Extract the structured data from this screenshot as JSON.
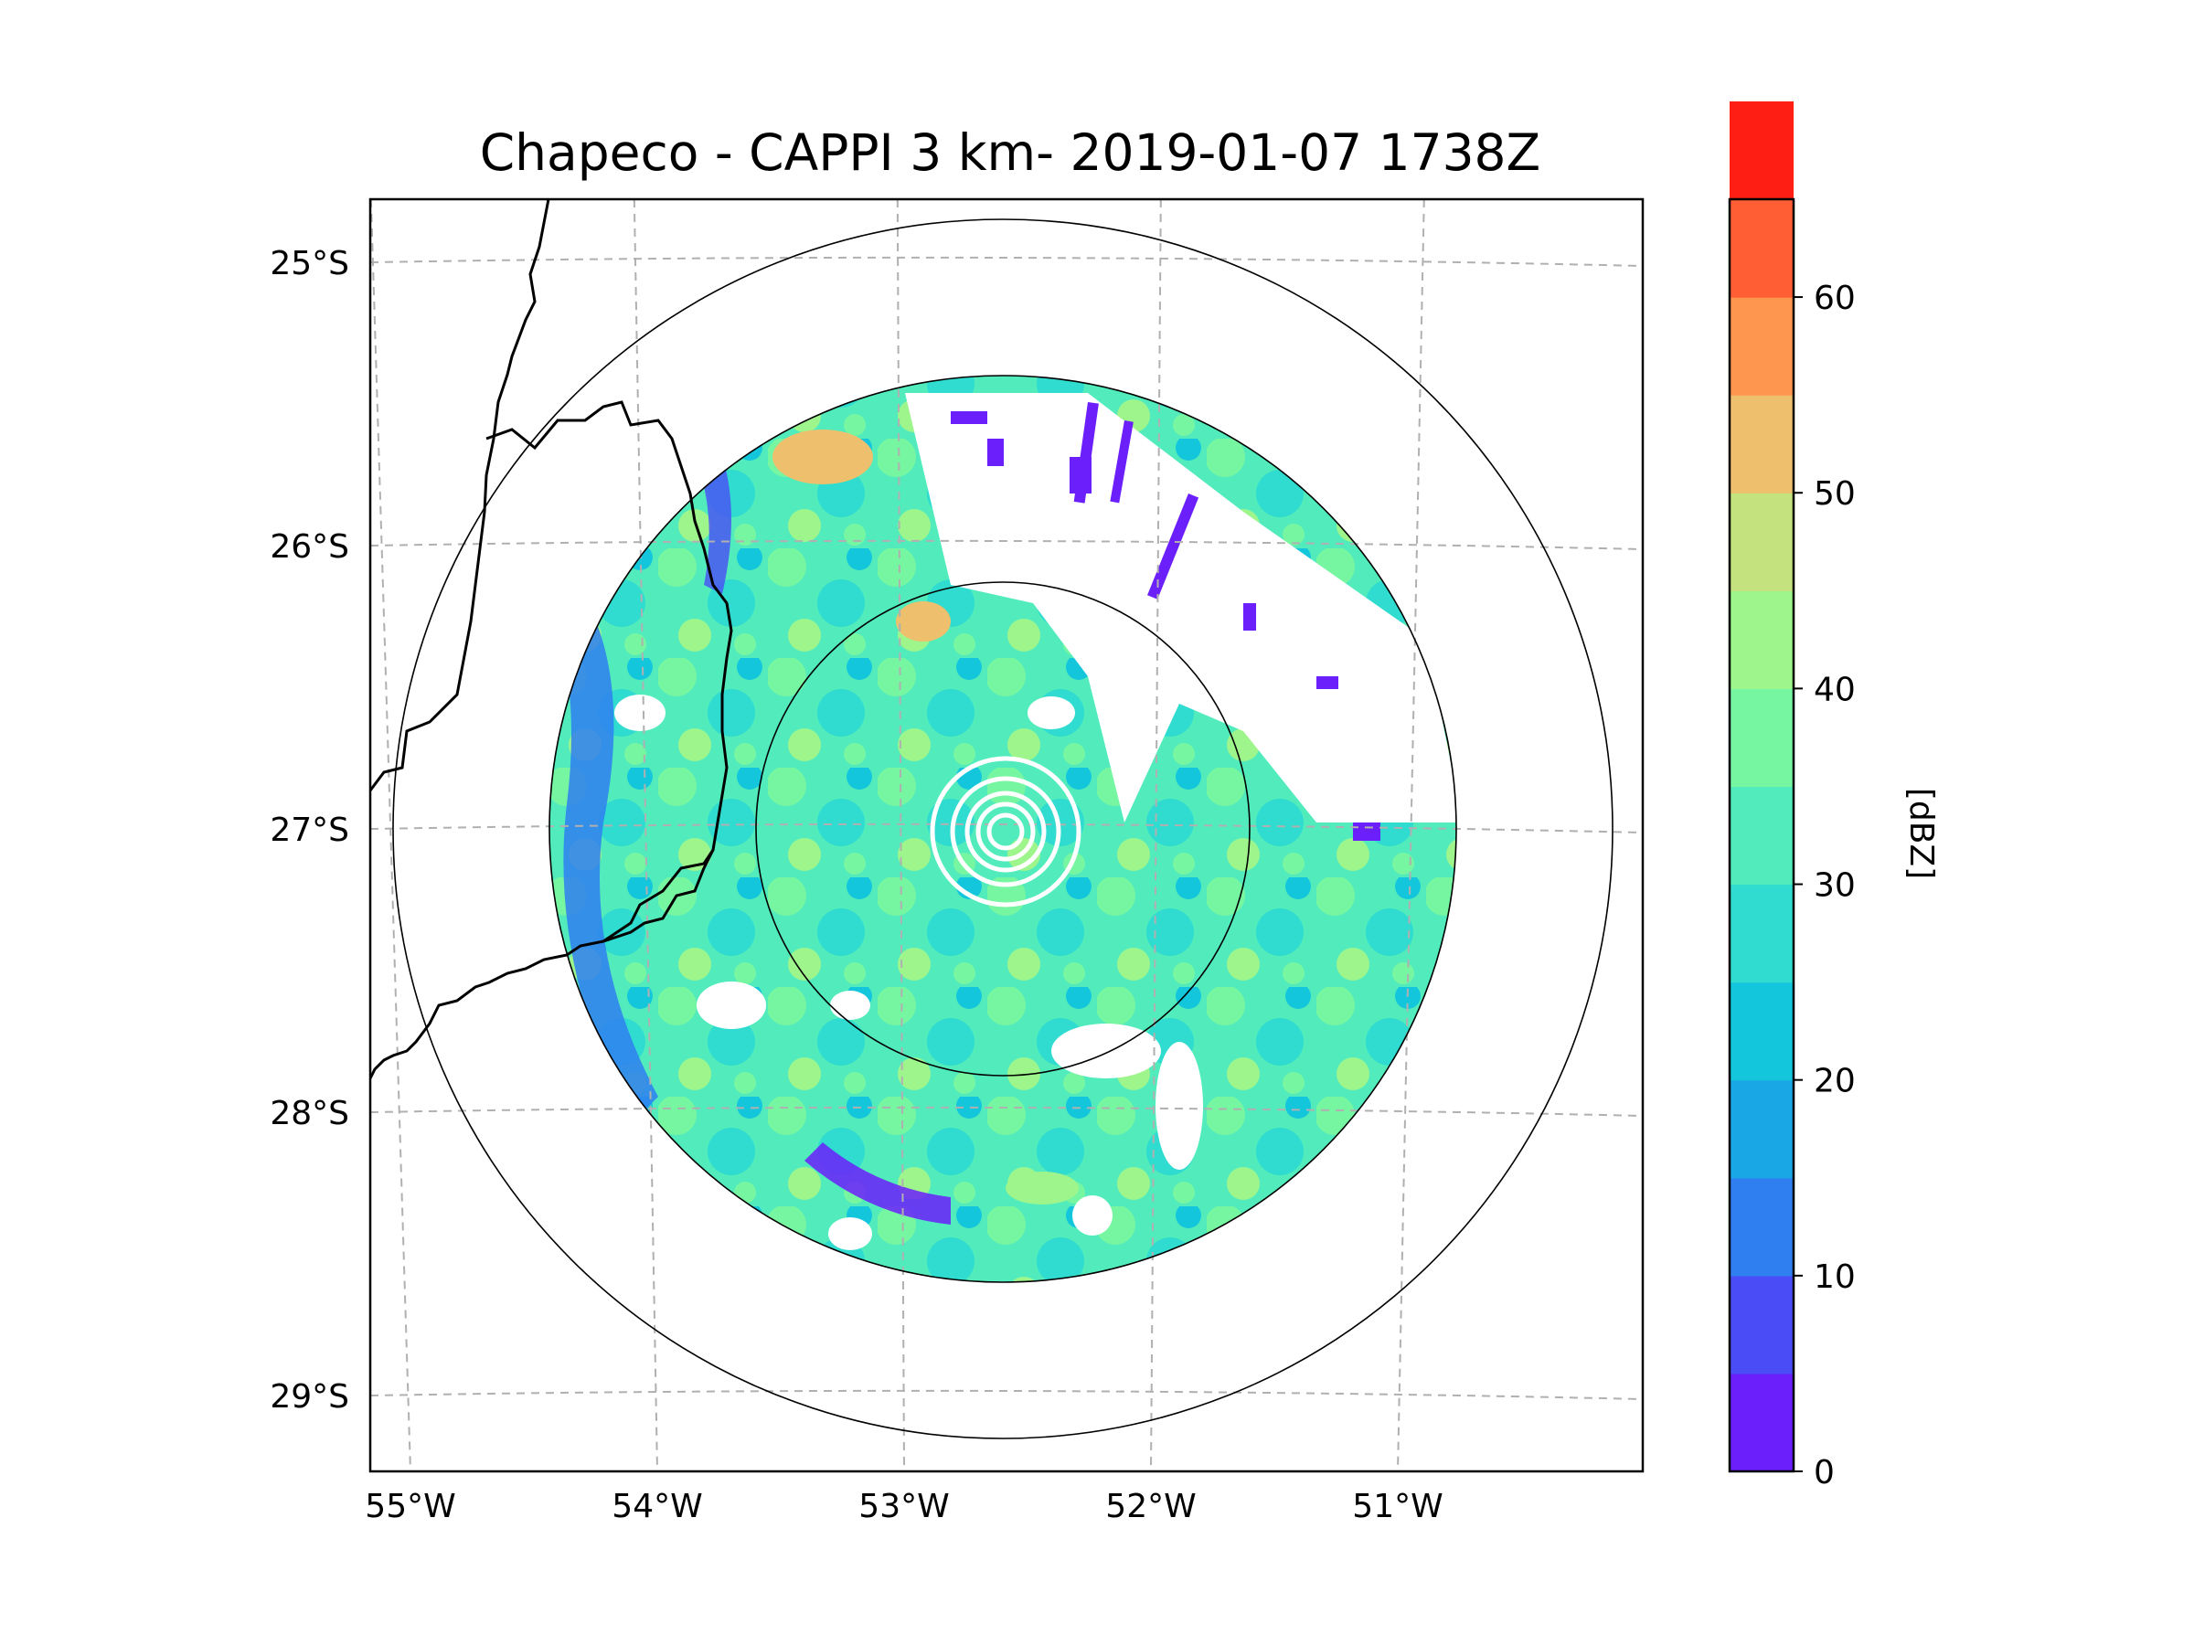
{
  "title": "Chapeco - CAPPI 3 km- 2019-01-07 1738Z",
  "map": {
    "lon_ticks": [
      {
        "lon": -55,
        "label": "55°W"
      },
      {
        "lon": -54,
        "label": "54°W"
      },
      {
        "lon": -53,
        "label": "53°W"
      },
      {
        "lon": -52,
        "label": "52°W"
      },
      {
        "lon": -51,
        "label": "51°W"
      }
    ],
    "lat_ticks": [
      {
        "lat": -25,
        "label": "25°S"
      },
      {
        "lat": -26,
        "label": "26°S"
      },
      {
        "lat": -27,
        "label": "27°S"
      },
      {
        "lat": -28,
        "label": "28°S"
      },
      {
        "lat": -29,
        "label": "29°S"
      }
    ],
    "gridlines": true,
    "range_rings": 3,
    "colors": {
      "gridline": "#b0b0b0",
      "border": "#000000",
      "ring": "#000000"
    }
  },
  "colorbar": {
    "label": "[dBZ]",
    "min": 0,
    "max": 65,
    "step": 5,
    "tick_labels": [
      {
        "value": 0,
        "label": "0"
      },
      {
        "value": 10,
        "label": "10"
      },
      {
        "value": 20,
        "label": "20"
      },
      {
        "value": 30,
        "label": "30"
      },
      {
        "value": 40,
        "label": "40"
      },
      {
        "value": 50,
        "label": "50"
      },
      {
        "value": 60,
        "label": "60"
      }
    ],
    "colors": [
      "#6b1ffb",
      "#4a4df5",
      "#2f7ff0",
      "#1aa7e6",
      "#14c6dc",
      "#2fdccf",
      "#52ecbc",
      "#77f6a2",
      "#9ef58c",
      "#c4e27e",
      "#eebf6c",
      "#ff9650",
      "#ff5e34",
      "#ff1e14"
    ]
  }
}
